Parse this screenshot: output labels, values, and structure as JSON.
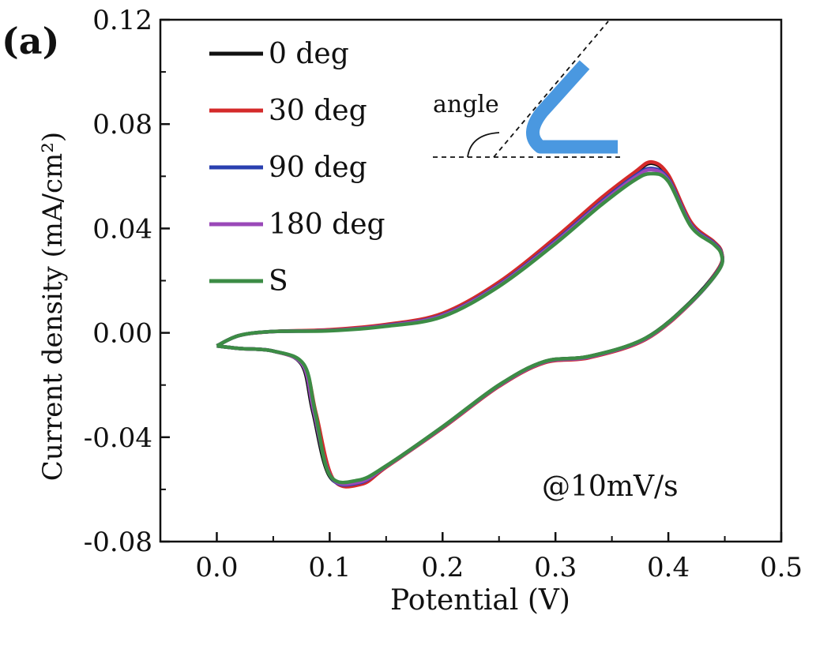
{
  "panel_label": "(a)",
  "chart_data": {
    "type": "line",
    "title": "",
    "xlabel": "Potential (V)",
    "ylabel": "Current density (mA/cm²)",
    "xlim": [
      -0.05,
      0.5
    ],
    "ylim": [
      -0.08,
      0.12
    ],
    "xticks": [
      "0.0",
      "0.1",
      "0.2",
      "0.3",
      "0.4",
      "0.5"
    ],
    "yticks": [
      "-0.08",
      "-0.04",
      "0.00",
      "0.04",
      "0.08",
      "0.12"
    ],
    "grid": false,
    "legend_position": "top-left",
    "annotation": "@10mV/s",
    "inset_label": "angle",
    "series": [
      {
        "name": "0 deg",
        "color": "#111111",
        "x": [
          0.0,
          0.02,
          0.05,
          0.1,
          0.15,
          0.2,
          0.25,
          0.3,
          0.34,
          0.37,
          0.385,
          0.4,
          0.42,
          0.44,
          0.447,
          0.445,
          0.42,
          0.38,
          0.33,
          0.29,
          0.25,
          0.2,
          0.15,
          0.125,
          0.1,
          0.085,
          0.075,
          0.05,
          0.02,
          0.0
        ],
        "y": [
          -0.005,
          -0.001,
          0.0005,
          0.001,
          0.003,
          0.007,
          0.019,
          0.036,
          0.051,
          0.061,
          0.065,
          0.06,
          0.042,
          0.035,
          0.031,
          0.025,
          0.012,
          -0.002,
          -0.009,
          -0.011,
          -0.02,
          -0.036,
          -0.051,
          -0.057,
          -0.055,
          -0.03,
          -0.012,
          -0.007,
          -0.006,
          -0.005
        ]
      },
      {
        "name": "30 deg",
        "color": "#d42a2a",
        "x": [
          0.0,
          0.02,
          0.05,
          0.1,
          0.15,
          0.2,
          0.25,
          0.3,
          0.34,
          0.37,
          0.385,
          0.4,
          0.42,
          0.44,
          0.447,
          0.445,
          0.42,
          0.38,
          0.33,
          0.29,
          0.25,
          0.2,
          0.15,
          0.128,
          0.103,
          0.088,
          0.077,
          0.05,
          0.02,
          0.0
        ],
        "y": [
          -0.005,
          -0.001,
          0.0005,
          0.0012,
          0.0032,
          0.0075,
          0.0195,
          0.0365,
          0.0515,
          0.0615,
          0.0655,
          0.0605,
          0.0425,
          0.035,
          0.031,
          0.025,
          0.0115,
          -0.0025,
          -0.0095,
          -0.0115,
          -0.0205,
          -0.0365,
          -0.0515,
          -0.058,
          -0.056,
          -0.031,
          -0.0125,
          -0.007,
          -0.006,
          -0.005
        ]
      },
      {
        "name": "90 deg",
        "color": "#2a40b0",
        "x": [
          0.0,
          0.02,
          0.05,
          0.1,
          0.15,
          0.2,
          0.25,
          0.3,
          0.34,
          0.37,
          0.385,
          0.4,
          0.42,
          0.44,
          0.447,
          0.445,
          0.42,
          0.38,
          0.33,
          0.29,
          0.25,
          0.2,
          0.15,
          0.126,
          0.101,
          0.086,
          0.076,
          0.05,
          0.02,
          0.0
        ],
        "y": [
          -0.005,
          -0.001,
          0.0005,
          0.0009,
          0.0028,
          0.0068,
          0.0185,
          0.0352,
          0.05,
          0.06,
          0.063,
          0.059,
          0.0415,
          0.0345,
          0.0305,
          0.0245,
          0.0118,
          -0.0022,
          -0.0092,
          -0.0112,
          -0.0202,
          -0.0362,
          -0.0512,
          -0.0575,
          -0.0552,
          -0.0302,
          -0.0122,
          -0.007,
          -0.006,
          -0.005
        ]
      },
      {
        "name": "180 deg",
        "color": "#9a48b8",
        "x": [
          0.0,
          0.02,
          0.05,
          0.1,
          0.15,
          0.2,
          0.25,
          0.3,
          0.34,
          0.37,
          0.385,
          0.4,
          0.42,
          0.44,
          0.447,
          0.445,
          0.42,
          0.38,
          0.33,
          0.29,
          0.25,
          0.2,
          0.15,
          0.126,
          0.101,
          0.086,
          0.076,
          0.05,
          0.02,
          0.0
        ],
        "y": [
          -0.005,
          -0.001,
          0.0005,
          0.0009,
          0.0027,
          0.0066,
          0.0182,
          0.0348,
          0.0495,
          0.0595,
          0.0625,
          0.0585,
          0.0412,
          0.0342,
          0.0302,
          0.0242,
          0.0116,
          -0.0022,
          -0.0092,
          -0.0112,
          -0.0202,
          -0.0362,
          -0.0512,
          -0.0572,
          -0.055,
          -0.0302,
          -0.0122,
          -0.007,
          -0.006,
          -0.005
        ]
      },
      {
        "name": "S",
        "color": "#3c8c45",
        "x": [
          0.0,
          0.02,
          0.05,
          0.1,
          0.15,
          0.2,
          0.25,
          0.3,
          0.34,
          0.37,
          0.385,
          0.4,
          0.42,
          0.44,
          0.447,
          0.445,
          0.42,
          0.38,
          0.33,
          0.29,
          0.25,
          0.2,
          0.15,
          0.125,
          0.1,
          0.087,
          0.077,
          0.05,
          0.02,
          0.0
        ],
        "y": [
          -0.005,
          -0.001,
          0.0005,
          0.0008,
          0.0025,
          0.0062,
          0.0178,
          0.0342,
          0.0488,
          0.0585,
          0.061,
          0.058,
          0.0408,
          0.034,
          0.03,
          0.0242,
          0.0118,
          -0.002,
          -0.009,
          -0.011,
          -0.02,
          -0.036,
          -0.051,
          -0.0565,
          -0.0545,
          -0.03,
          -0.012,
          -0.007,
          -0.006,
          -0.005
        ]
      }
    ]
  }
}
